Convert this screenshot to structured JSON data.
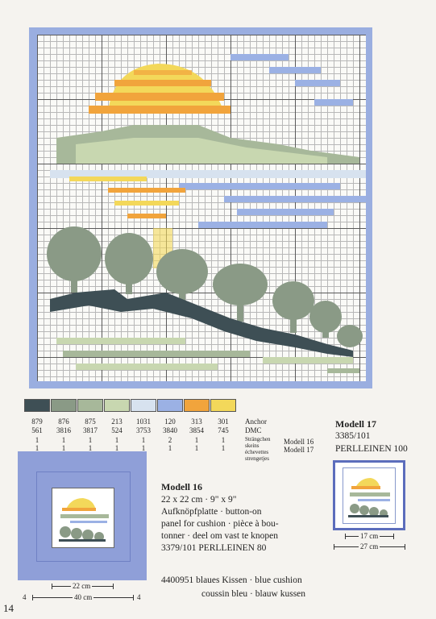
{
  "page_number": "14",
  "colors": {
    "frame": "#9aaee0",
    "palette": [
      "#3e4f55",
      "#8a9a86",
      "#a7b89a",
      "#c8d7b0",
      "#d7e2ef",
      "#9bb1e4",
      "#f1a43c",
      "#f3d85a"
    ]
  },
  "legend": {
    "anchor": [
      "879",
      "876",
      "875",
      "213",
      "1031",
      "120",
      "313",
      "301"
    ],
    "dmc": [
      "561",
      "3816",
      "3817",
      "524",
      "3753",
      "3840",
      "3854",
      "745"
    ],
    "modell16": [
      "1",
      "1",
      "1",
      "1",
      "1",
      "2",
      "1",
      "1"
    ],
    "modell17": [
      "1",
      "1",
      "1",
      "1",
      "1",
      "1",
      "1",
      "1"
    ],
    "labels": {
      "anchor": "Anchor",
      "dmc": "DMC",
      "skeins": [
        "Strängchen",
        "skeins",
        "échevettes",
        "strengetjes"
      ],
      "m16": "Modell 16",
      "m17": "Modell 17"
    }
  },
  "modell16": {
    "title": "Modell 16",
    "size": "22 x 22 cm · 9\" x 9\"",
    "lines": [
      "Aufknöpfplatte ·  button-on",
      "panel for cushion · pièce à bou-",
      "tonner · deel om vast te knopen",
      "3379/101 PERLLEINEN 80"
    ],
    "cushion_lines": [
      "4400951 blaues Kissen · blue cushion",
      "coussin bleu · blauw kussen"
    ],
    "dim_inner": "22 cm",
    "dim_outer": "40 cm",
    "dim_margin": "4"
  },
  "modell17": {
    "title": "Modell 17",
    "code": "3385/101",
    "fabric": "PERLLEINEN 100",
    "dim_inner": "17 cm",
    "dim_outer": "27 cm"
  }
}
